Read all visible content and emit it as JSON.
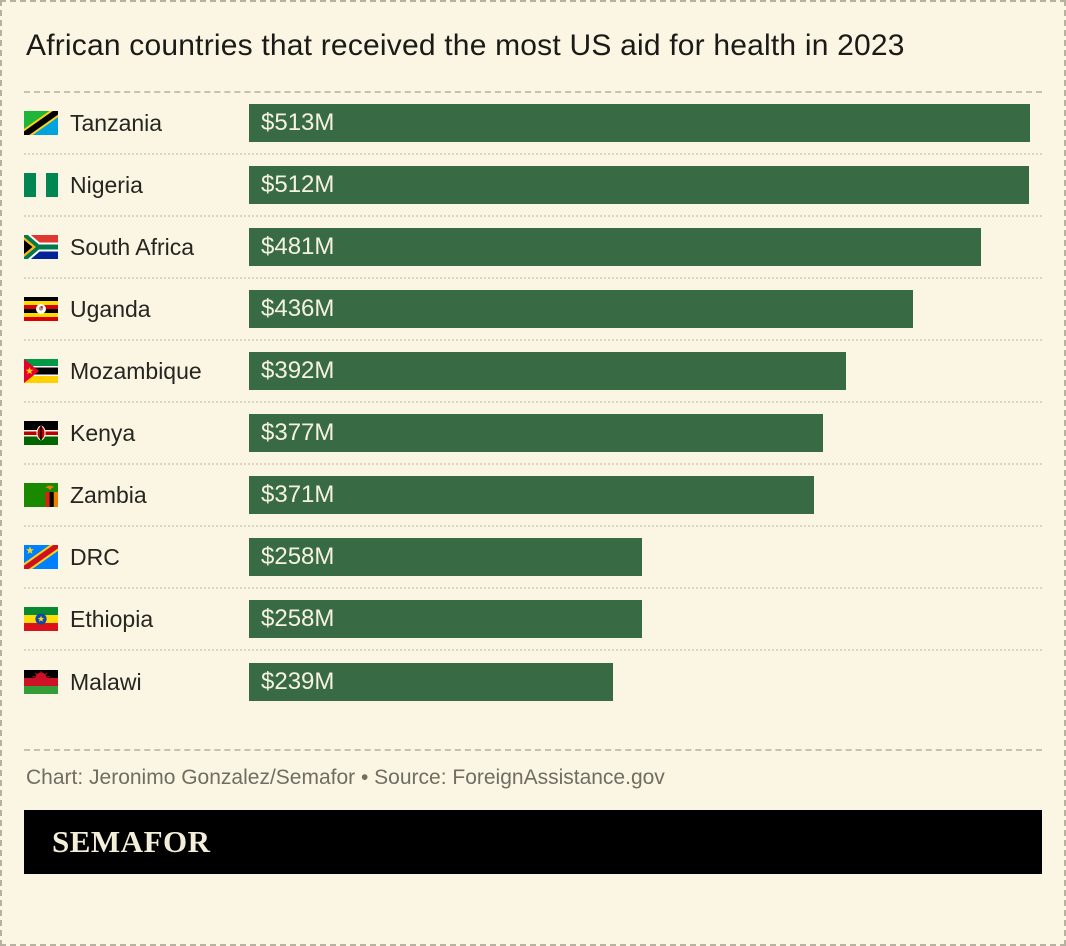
{
  "title": "African countries that received the most US aid for health in 2023",
  "chart_data": {
    "type": "bar",
    "orientation": "horizontal",
    "title": "African countries that received the most US aid for health in 2023",
    "unit": "USD millions",
    "xlim": [
      0,
      513
    ],
    "grid": false,
    "legend": "none",
    "categories": [
      "Tanzania",
      "Nigeria",
      "South Africa",
      "Uganda",
      "Mozambique",
      "Kenya",
      "Zambia",
      "DRC",
      "Ethiopia",
      "Malawi"
    ],
    "values": [
      513,
      512,
      481,
      436,
      392,
      377,
      371,
      258,
      258,
      239
    ],
    "value_labels": [
      "$513M",
      "$512M",
      "$481M",
      "$436M",
      "$392M",
      "$377M",
      "$371M",
      "$258M",
      "$258M",
      "$239M"
    ],
    "flags": [
      "tanzania-flag",
      "nigeria-flag",
      "south-africa-flag",
      "uganda-flag",
      "mozambique-flag",
      "kenya-flag",
      "zambia-flag",
      "drc-flag",
      "ethiopia-flag",
      "malawi-flag"
    ]
  },
  "footer": {
    "credit": "Chart: Jeronimo Gonzalez/Semafor • Source: ForeignAssistance.gov"
  },
  "logo": {
    "text": "SEMAFOR"
  },
  "colors": {
    "background": "#faf6e3",
    "bar_green": "#386b44",
    "bar_text": "#f6f2df",
    "logo_bg": "#000000",
    "logo_text": "#f3eeda"
  }
}
